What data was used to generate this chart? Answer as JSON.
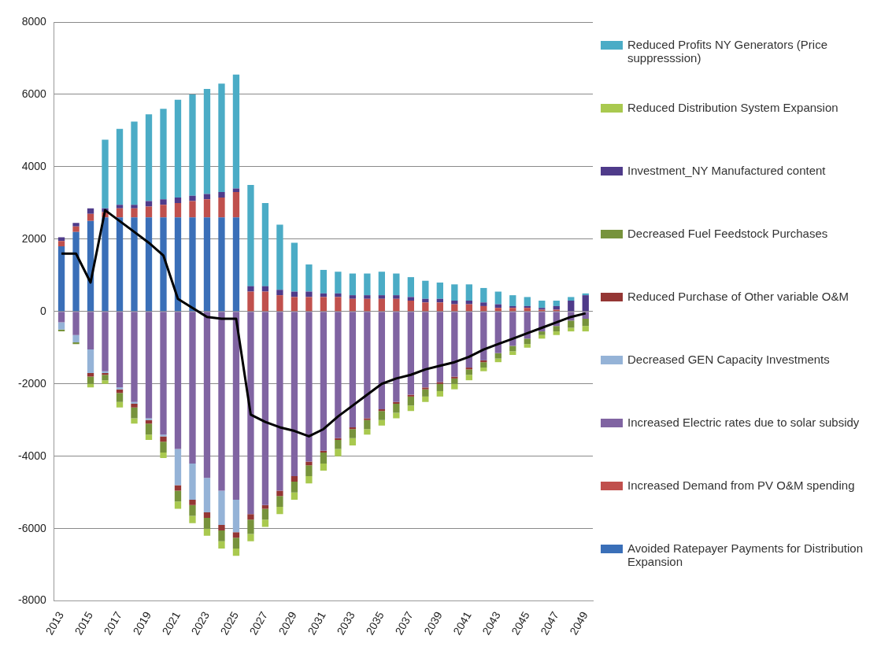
{
  "chart_data": {
    "type": "bar",
    "stacked": true,
    "categories": [
      "2013",
      null,
      "2015",
      null,
      "2017",
      null,
      "2019",
      null,
      "2021",
      null,
      "2023",
      null,
      "2025",
      null,
      "2027",
      null,
      "2029",
      null,
      "2031",
      null,
      "2033",
      null,
      "2035",
      null,
      "2037",
      null,
      "2039",
      null,
      "2041",
      null,
      "2043",
      null,
      "2045",
      null,
      "2047",
      null,
      "2049"
    ],
    "series": [
      {
        "name": "Avoided Ratepayer Payments for Distribution Expansion",
        "color": "#3a6fb8",
        "values": [
          1800,
          2200,
          2500,
          2600,
          2600,
          2600,
          2600,
          2600,
          2600,
          2600,
          2600,
          2600,
          2600,
          0,
          0,
          0,
          0,
          0,
          0,
          0,
          0,
          0,
          0,
          0,
          0,
          0,
          0,
          0,
          0,
          0,
          0,
          0,
          0,
          0,
          0,
          0,
          0
        ]
      },
      {
        "name": "Increased Demand from PV O&M  spending",
        "color": "#c0504d",
        "values": [
          150,
          150,
          200,
          150,
          250,
          250,
          300,
          350,
          400,
          450,
          500,
          550,
          700,
          550,
          550,
          450,
          400,
          400,
          400,
          400,
          350,
          350,
          350,
          350,
          300,
          250,
          250,
          200,
          200,
          150,
          100,
          100,
          100,
          50,
          50,
          0,
          0
        ]
      },
      {
        "name": "Increased Electric rates due to solar subsidy",
        "color": "#8064a2",
        "values": [
          -300,
          -650,
          -1050,
          -1650,
          -2100,
          -2500,
          -2950,
          -3400,
          -3800,
          -4200,
          -4600,
          -4950,
          -5200,
          -5600,
          -5350,
          -4950,
          -4550,
          -4150,
          -3850,
          -3500,
          -3200,
          -2950,
          -2700,
          -2500,
          -2300,
          -2100,
          -1950,
          -1800,
          -1550,
          -1350,
          -1150,
          -950,
          -750,
          -550,
          -400,
          -250,
          -200
        ]
      },
      {
        "name": "Decreased GEN Capacity Investments",
        "color": "#95b3d7",
        "values": [
          -200,
          -200,
          -650,
          -50,
          -50,
          -50,
          -50,
          -50,
          -1000,
          -1000,
          -950,
          -950,
          -900,
          0,
          0,
          0,
          0,
          0,
          0,
          0,
          0,
          0,
          0,
          0,
          0,
          0,
          0,
          0,
          0,
          0,
          0,
          0,
          0,
          0,
          0,
          0,
          0
        ]
      },
      {
        "name": "Reduced Purchase of Other variable O&M",
        "color": "#943634",
        "values": [
          0,
          0,
          -100,
          -50,
          -100,
          -100,
          -100,
          -150,
          -150,
          -150,
          -150,
          -150,
          -150,
          -150,
          -100,
          -150,
          -150,
          -100,
          -50,
          -50,
          -50,
          -50,
          -50,
          -50,
          -50,
          -50,
          -50,
          -50,
          -50,
          -50,
          0,
          0,
          0,
          0,
          0,
          0,
          0
        ]
      },
      {
        "name": "Decreased Fuel Feedstock Purchases",
        "color": "#77933c",
        "values": [
          -50,
          -50,
          -200,
          -150,
          -250,
          -300,
          -300,
          -300,
          -300,
          -300,
          -300,
          -300,
          -300,
          -400,
          -300,
          -300,
          -300,
          -300,
          -300,
          -250,
          -250,
          -250,
          -250,
          -250,
          -250,
          -200,
          -200,
          -150,
          -150,
          -150,
          -150,
          -150,
          -150,
          -100,
          -150,
          -200,
          -200
        ]
      },
      {
        "name": "Investment_NY Manufactured content",
        "color": "#4f3b8a",
        "values": [
          100,
          100,
          150,
          100,
          100,
          100,
          150,
          150,
          150,
          150,
          150,
          150,
          100,
          150,
          150,
          150,
          150,
          150,
          100,
          100,
          100,
          100,
          100,
          100,
          100,
          100,
          100,
          100,
          100,
          100,
          100,
          50,
          50,
          50,
          100,
          300,
          450
        ]
      },
      {
        "name": "Reduced Distribution System Expansion",
        "color": "#a9c94f",
        "values": [
          0,
          0,
          -100,
          -100,
          -150,
          -150,
          -150,
          -150,
          -200,
          -200,
          -200,
          -200,
          -200,
          -200,
          -200,
          -200,
          -200,
          -200,
          -200,
          -200,
          -200,
          -150,
          -150,
          -150,
          -150,
          -150,
          -150,
          -150,
          -150,
          -100,
          -100,
          -100,
          -100,
          -100,
          -100,
          -100,
          -150
        ]
      },
      {
        "name": "Reduced Profits NY Generators  (Price suppresssion)",
        "color": "#4bacc6",
        "values": [
          0,
          0,
          0,
          1900,
          2100,
          2300,
          2400,
          2500,
          2700,
          2800,
          2900,
          3000,
          3150,
          2800,
          2300,
          1800,
          1350,
          750,
          650,
          600,
          600,
          600,
          650,
          600,
          550,
          500,
          450,
          450,
          450,
          400,
          350,
          300,
          250,
          200,
          150,
          100,
          50
        ]
      },
      {
        "type": "line",
        "color": "#000000",
        "values": [
          1600,
          1600,
          800,
          2800,
          2500,
          2200,
          1900,
          1550,
          350,
          100,
          -150,
          -200,
          -200,
          -2850,
          -3050,
          -3200,
          -3300,
          -3450,
          -3250,
          -2900,
          -2600,
          -2300,
          -2000,
          -1850,
          -1750,
          -1600,
          -1500,
          -1400,
          -1250,
          -1050,
          -900,
          -750,
          -600,
          -450,
          -300,
          -150,
          -50
        ]
      }
    ],
    "ylim": [
      -8000,
      8000
    ],
    "yticks": [
      -8000,
      -6000,
      -4000,
      -2000,
      0,
      2000,
      4000,
      6000,
      8000
    ],
    "grid": "y",
    "legend": "right",
    "marker": "none",
    "line_style": "solid"
  }
}
